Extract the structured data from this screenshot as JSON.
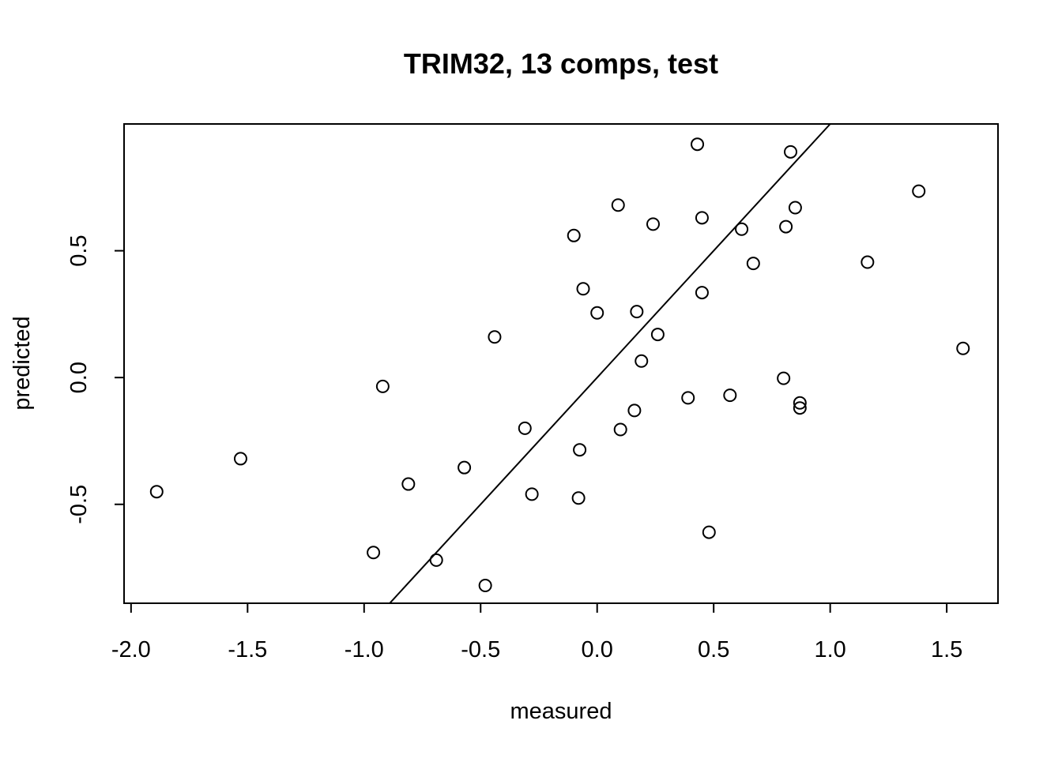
{
  "chart_data": {
    "type": "scatter",
    "title": "TRIM32, 13 comps, test",
    "xlabel": "measured",
    "ylabel": "predicted",
    "xlim": [
      -2.03,
      1.72
    ],
    "ylim": [
      -0.89,
      1.0
    ],
    "xticks": [
      -2.0,
      -1.5,
      -1.0,
      -0.5,
      0.0,
      0.5,
      1.0,
      1.5
    ],
    "xtick_labels": [
      "-2.0",
      "-1.5",
      "-1.0",
      "-0.5",
      "0.0",
      "0.5",
      "1.0",
      "1.5"
    ],
    "yticks": [
      -0.5,
      0.0,
      0.5
    ],
    "ytick_labels": [
      "-0.5",
      "0.0",
      "0.5"
    ],
    "grid": false,
    "reference_line": {
      "slope": 1,
      "intercept": 0
    },
    "points": [
      {
        "x": -1.89,
        "y": -0.45
      },
      {
        "x": -1.53,
        "y": -0.32
      },
      {
        "x": -0.96,
        "y": -0.69
      },
      {
        "x": -0.92,
        "y": -0.035
      },
      {
        "x": -0.81,
        "y": -0.42
      },
      {
        "x": -0.69,
        "y": -0.72
      },
      {
        "x": -0.57,
        "y": -0.355
      },
      {
        "x": -0.48,
        "y": -0.82
      },
      {
        "x": -0.44,
        "y": 0.16
      },
      {
        "x": -0.31,
        "y": -0.2
      },
      {
        "x": -0.28,
        "y": -0.46
      },
      {
        "x": -0.1,
        "y": 0.56
      },
      {
        "x": -0.08,
        "y": -0.475
      },
      {
        "x": -0.075,
        "y": -0.285
      },
      {
        "x": -0.06,
        "y": 0.35
      },
      {
        "x": 0.0,
        "y": 0.255
      },
      {
        "x": 0.09,
        "y": 0.68
      },
      {
        "x": 0.1,
        "y": -0.205
      },
      {
        "x": 0.16,
        "y": -0.13
      },
      {
        "x": 0.17,
        "y": 0.26
      },
      {
        "x": 0.19,
        "y": 0.065
      },
      {
        "x": 0.24,
        "y": 0.605
      },
      {
        "x": 0.26,
        "y": 0.17
      },
      {
        "x": 0.39,
        "y": -0.08
      },
      {
        "x": 0.43,
        "y": 0.92
      },
      {
        "x": 0.45,
        "y": 0.335
      },
      {
        "x": 0.45,
        "y": 0.63
      },
      {
        "x": 0.48,
        "y": -0.61
      },
      {
        "x": 0.57,
        "y": -0.07
      },
      {
        "x": 0.62,
        "y": 0.585
      },
      {
        "x": 0.67,
        "y": 0.45
      },
      {
        "x": 0.8,
        "y": -0.003
      },
      {
        "x": 0.81,
        "y": 0.595
      },
      {
        "x": 0.83,
        "y": 0.89
      },
      {
        "x": 0.85,
        "y": 0.67
      },
      {
        "x": 0.87,
        "y": -0.12
      },
      {
        "x": 0.87,
        "y": -0.1
      },
      {
        "x": 1.16,
        "y": 0.455
      },
      {
        "x": 1.38,
        "y": 0.735
      },
      {
        "x": 1.57,
        "y": 0.115
      }
    ]
  }
}
